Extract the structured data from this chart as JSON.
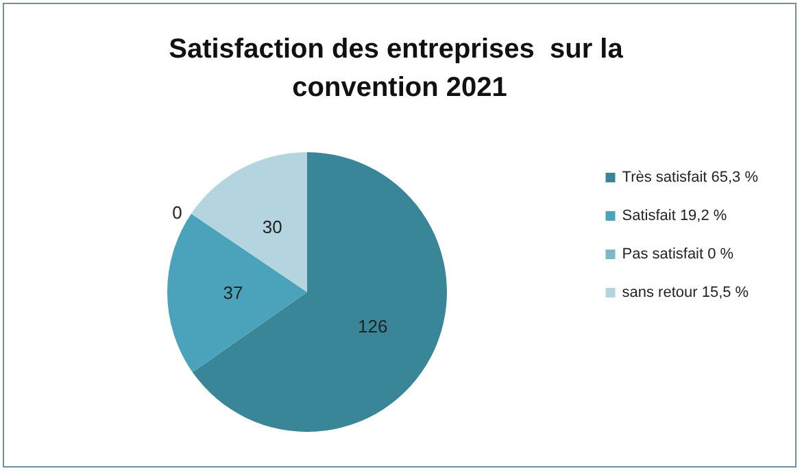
{
  "chart_data": {
    "type": "pie",
    "title": "Satisfaction des entreprises  sur la convention 2021",
    "categories": [
      "Très satisfait 65,3 %",
      "Satisfait 19,2 %",
      "Pas satisfait 0 %",
      "sans retour 15,5 %"
    ],
    "values": [
      126,
      37,
      0,
      30
    ],
    "colors": [
      "#3a8699",
      "#4aa3ba",
      "#7db8c9",
      "#b4d5df"
    ],
    "value_labels": [
      "126",
      "37",
      "0",
      "30"
    ],
    "legend": "right"
  }
}
